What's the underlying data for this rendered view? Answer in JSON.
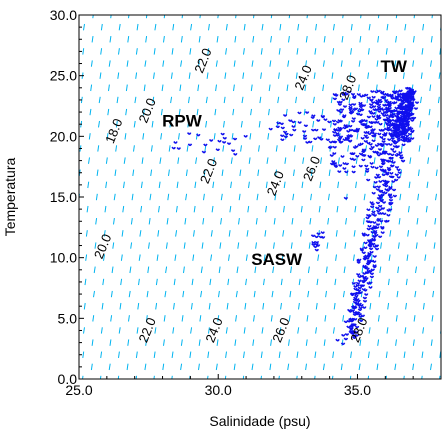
{
  "chart_data": {
    "type": "scatter",
    "title": "",
    "xlabel": "Salinidade (psu)",
    "ylabel": "Temperatura",
    "xlim": [
      25.0,
      38.0
    ],
    "ylim": [
      0.0,
      30.0
    ],
    "xticks": [
      25.0,
      30.0,
      35.0
    ],
    "xtick_labels": [
      "25.0",
      "30.0",
      "35.0"
    ],
    "yticks": [
      0.0,
      5.0,
      10.0,
      15.0,
      20.0,
      25.0,
      30.0
    ],
    "ytick_labels": [
      "0.0",
      "5.0",
      "10.0",
      "15.0",
      "20.0",
      "25.0",
      "30.0"
    ],
    "grid": false,
    "legend": "none",
    "colors": {
      "points": "#1010ee",
      "contours": "#00b4f0",
      "axes": "#000000"
    },
    "density_contours": {
      "values": [
        18,
        20,
        22,
        24,
        26,
        28
      ],
      "labels": [
        "18.0",
        "20.0",
        "22.0",
        "24.0",
        "26.0",
        "28.0"
      ],
      "label_positions": [
        {
          "label": "18.0",
          "s": 26.4,
          "t": 20.3
        },
        {
          "label": "20.0",
          "s": 27.6,
          "t": 22.0
        },
        {
          "label": "22.0",
          "s": 29.6,
          "t": 26.1
        },
        {
          "label": "24.0",
          "s": 33.2,
          "t": 24.7
        },
        {
          "label": "28.0",
          "s": 34.8,
          "t": 23.9
        },
        {
          "label": "22.0",
          "s": 29.8,
          "t": 17.0
        },
        {
          "label": "24.0",
          "s": 32.2,
          "t": 16.0
        },
        {
          "label": "26.0",
          "s": 33.5,
          "t": 17.2
        },
        {
          "label": "20.0",
          "s": 26.0,
          "t": 10.8
        },
        {
          "label": "22.0",
          "s": 27.6,
          "t": 3.9
        },
        {
          "label": "24.0",
          "s": 30.0,
          "t": 3.9
        },
        {
          "label": "26.0",
          "s": 32.4,
          "t": 3.9
        },
        {
          "label": "28.0",
          "s": 35.2,
          "t": 3.9
        }
      ]
    },
    "annotations": [
      {
        "text": "TW",
        "s": 36.3,
        "t": 25.3
      },
      {
        "text": "RPW",
        "s": 28.7,
        "t": 20.8
      },
      {
        "text": "SASW",
        "s": 32.1,
        "t": 9.4
      }
    ],
    "series": [
      {
        "clusters": [
          {
            "s_range": [
              34.2,
              37.0
            ],
            "t_range": [
              19.5,
              23.8
            ],
            "count": 260
          },
          {
            "s_range": [
              34.0,
              36.0
            ],
            "t_range": [
              17.0,
              19.5
            ],
            "count": 60
          },
          {
            "s_range": [
              32.0,
              34.6
            ],
            "t_range": [
              19.5,
              22.0
            ],
            "count": 45
          },
          {
            "s_range": [
              28.4,
              30.8
            ],
            "t_range": [
              18.5,
              20.3
            ],
            "count": 12
          },
          {
            "s_range": [
              33.4,
              33.8
            ],
            "t_range": [
              10.6,
              12.2
            ],
            "count": 10
          },
          {
            "s_range": [
              35.5,
              37.0
            ],
            "t_range": [
              22.0,
              23.8
            ],
            "count": 40
          }
        ],
        "branches": [
          {
            "from": [
              36.4,
              22.3
            ],
            "to": [
              34.7,
              3.5
            ]
          },
          {
            "from": [
              37.0,
              22.7
            ],
            "to": [
              34.8,
              3.6
            ]
          },
          {
            "from": [
              36.9,
              23.8
            ],
            "to": [
              36.5,
              20.0
            ]
          }
        ],
        "points": [
          [
            34.6,
            3.3
          ],
          [
            34.3,
            3.2
          ],
          [
            34.5,
            2.9
          ],
          [
            34.9,
            3.4
          ],
          [
            35.0,
            3.6
          ],
          [
            33.5,
            19.8
          ],
          [
            33.1,
            20.4
          ],
          [
            32.6,
            21.3
          ],
          [
            31.9,
            20.6
          ],
          [
            31.0,
            20.0
          ],
          [
            30.4,
            19.4
          ],
          [
            30.0,
            18.9
          ],
          [
            29.5,
            18.7
          ],
          [
            29.0,
            19.3
          ],
          [
            28.6,
            19.0
          ],
          [
            29.3,
            20.1
          ],
          [
            34.6,
            14.9
          ],
          [
            35.4,
            16.4
          ],
          [
            35.7,
            17.4
          ],
          [
            33.6,
            11.0
          ],
          [
            33.7,
            11.7
          ],
          [
            33.5,
            10.9
          ],
          [
            35.8,
            21.5
          ],
          [
            36.7,
            23.3
          ],
          [
            34.9,
            22.2
          ],
          [
            34.2,
            21.0
          ],
          [
            35.1,
            19.3
          ],
          [
            36.0,
            18.6
          ]
        ]
      }
    ]
  }
}
